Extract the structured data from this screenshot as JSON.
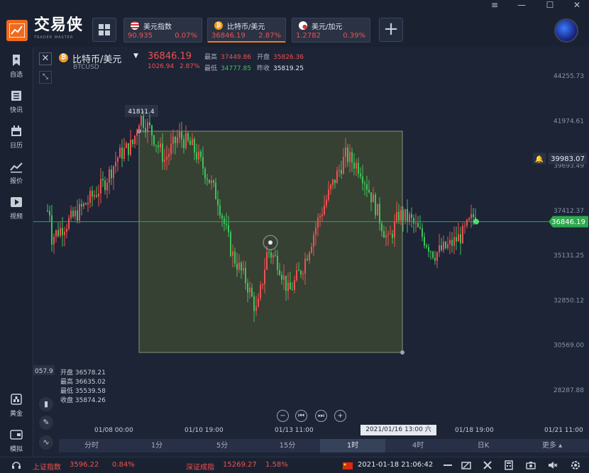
{
  "app": {
    "brand_cn": "交易侠",
    "brand_en": "TRADER MASTER",
    "window_controls": [
      "≡",
      "—",
      "☐",
      "✕"
    ]
  },
  "tickers": [
    {
      "name": "美元指数",
      "price": "90.935",
      "pct": "0.07%",
      "flag_icon": "us-flag-icon"
    },
    {
      "name": "比特币/美元",
      "price": "36846.19",
      "pct": "2.87%",
      "flag_icon": "bitcoin-icon"
    },
    {
      "name": "美元/加元",
      "price": "1.2782",
      "pct": "0.39%",
      "flag_icon": "canada-flag-icon"
    }
  ],
  "sidebar": {
    "items": [
      {
        "label": "自选",
        "icon": "bookmark-icon"
      },
      {
        "label": "快讯",
        "icon": "news-icon"
      },
      {
        "label": "日历",
        "icon": "calendar-icon"
      },
      {
        "label": "报价",
        "icon": "quote-chart-icon"
      },
      {
        "label": "视频",
        "icon": "video-icon"
      },
      {
        "label": "黄金",
        "icon": "gold-icon"
      },
      {
        "label": "模拟",
        "icon": "simulate-icon"
      }
    ]
  },
  "symbol": {
    "name": "比特币/美元",
    "code": "BTCUSD",
    "price": "36846.19",
    "change": "1026.94",
    "change_pct": "2.87%",
    "high_label": "最高",
    "high": "37449.86",
    "low_label": "最低",
    "low": "34777.85",
    "open_label": "开盘",
    "open": "35826.36",
    "prev_label": "昨收",
    "prev": "35819.25"
  },
  "chart_data": {
    "type": "candlestick",
    "y_ticks": [
      "44255.73",
      "41974.61",
      "39693.49",
      "37412.37",
      "35131.25",
      "32850.12",
      "30569.00",
      "28287.88"
    ],
    "x_ticks": [
      "01/08 00:00",
      "01/10 19:00",
      "01/13 11:00",
      "01/18 19:00",
      "01/21 11:00"
    ],
    "x_cursor_label": "2021/01/16 13:00 六",
    "current_price_label": "36846.19",
    "alert_price_label": "39983.07",
    "range_high_label": "41811.4",
    "left_axis_partial": "057.9",
    "ylim": [
      28287.88,
      44255.73
    ]
  },
  "ohlc_panel": {
    "open_label": "开盘",
    "open": "36578.21",
    "high_label": "最高",
    "high": "36635.02",
    "low_label": "最低",
    "low": "35539.58",
    "close_label": "收盘",
    "close": "35874.26"
  },
  "periods": [
    "分时",
    "1分",
    "5分",
    "15分",
    "1时",
    "4时",
    "日K",
    "更多"
  ],
  "active_period": "1时",
  "statusbar": {
    "index1_name": "上证指数",
    "index1_value": "3596.22",
    "index1_pct": "0.84%",
    "index2_name": "深证成指",
    "index2_value": "15269.27",
    "index2_pct": "1.58%",
    "datetime": "2021-01-18 21:06:42"
  },
  "colors": {
    "up": "#f0504f",
    "down": "#3ec25a",
    "accent": "#f07a1e"
  }
}
